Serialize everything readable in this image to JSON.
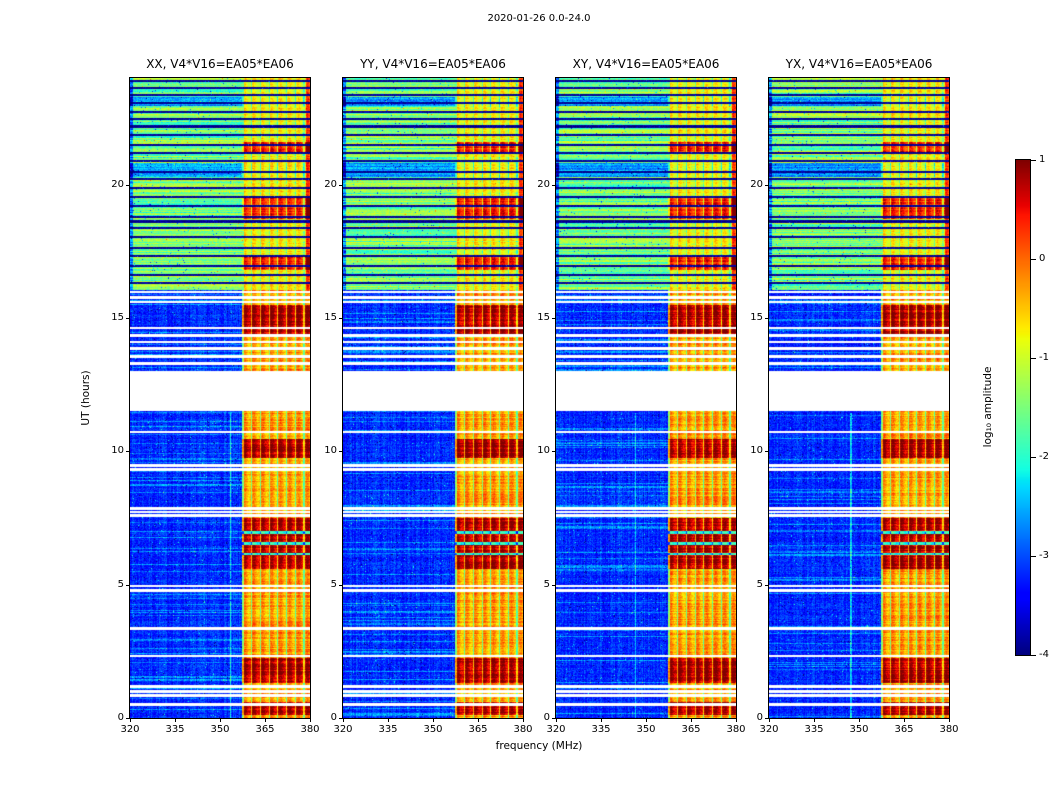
{
  "chart_data": {
    "type": "heatmap",
    "title": "2020-01-26 0.0-24.0",
    "xlabel": "frequency (MHz)",
    "ylabel": "UT (hours)",
    "x_range": [
      320,
      380
    ],
    "x_ticks": [
      320,
      335,
      350,
      365,
      380
    ],
    "y_range": [
      0,
      24
    ],
    "y_ticks": [
      0,
      5,
      10,
      15,
      20
    ],
    "colormap": "jet",
    "value_range": [
      -4,
      1
    ],
    "colorbar": {
      "label": "log₁₀ amplitude",
      "range": [
        -4,
        1
      ],
      "ticks": [
        1,
        0,
        -1,
        -2,
        -3,
        -4
      ]
    },
    "panels": [
      {
        "title": "XX, V4*V16=EA05*EA06",
        "seed": 7
      },
      {
        "title": "YY, V4*V16=EA05*EA06",
        "seed": 23
      },
      {
        "title": "XY, V4*V16=EA05*EA06",
        "seed": 41
      },
      {
        "title": "YX, V4*V16=EA05*EA06",
        "seed": 59
      }
    ],
    "features": {
      "description": "Four dynamic spectra (cross-correlation products). Night hours 0-16 UT: low amplitude blue background (~-3.2) with a strong RFI band at 358-380 MHz (orange/red), horizontal white data gaps, full data gap 11.5-13 UT. Day hours 16-24 UT: elevated green/yellow background (~-1.5) crossed by many dark horizontal interference lines; RFI band yellow with red-hot patches near 17 and 19 UT.",
      "day_start": 16.05,
      "night_base": -3.2,
      "day_base": -1.5,
      "rfi_band_mhz": [
        357.5,
        380
      ],
      "white_gaps_ut": [
        [
          11.5,
          13.0
        ]
      ],
      "white_lines_ut": [
        0.5,
        0.85,
        1.0,
        1.18,
        2.32,
        3.35,
        4.78,
        4.95,
        7.6,
        7.72,
        7.85,
        9.32,
        9.46,
        10.72,
        13.3,
        13.55,
        13.85,
        14.1,
        14.35,
        14.62,
        15.6,
        15.78,
        15.97
      ],
      "black_lines_ut": [
        16.3,
        16.62,
        16.95,
        17.32,
        17.62,
        18.05,
        18.38,
        18.62,
        18.78,
        19.2,
        19.55,
        19.88,
        20.2,
        20.48,
        20.9,
        21.18,
        21.5,
        21.85,
        22.18,
        22.45,
        22.72,
        23.05,
        23.35,
        23.62,
        23.88
      ],
      "strong_rfi_ut": [
        [
          0.1,
          0.6
        ],
        [
          1.3,
          2.25
        ],
        [
          5.6,
          7.5
        ],
        [
          9.75,
          10.45
        ],
        [
          14.3,
          15.5
        ]
      ],
      "band_dark_lines_ut": [
        6.15,
        6.55,
        6.95
      ],
      "day_rfi_hot_ut": [
        [
          16.8,
          17.3
        ],
        [
          18.7,
          19.5
        ],
        [
          21.2,
          21.6
        ]
      ],
      "cyan_band_ut": [
        8.15,
        9.1
      ],
      "dark_day_rows_ut": [
        [
          20.3,
          20.8
        ],
        [
          22.95,
          23.3
        ]
      ]
    }
  }
}
